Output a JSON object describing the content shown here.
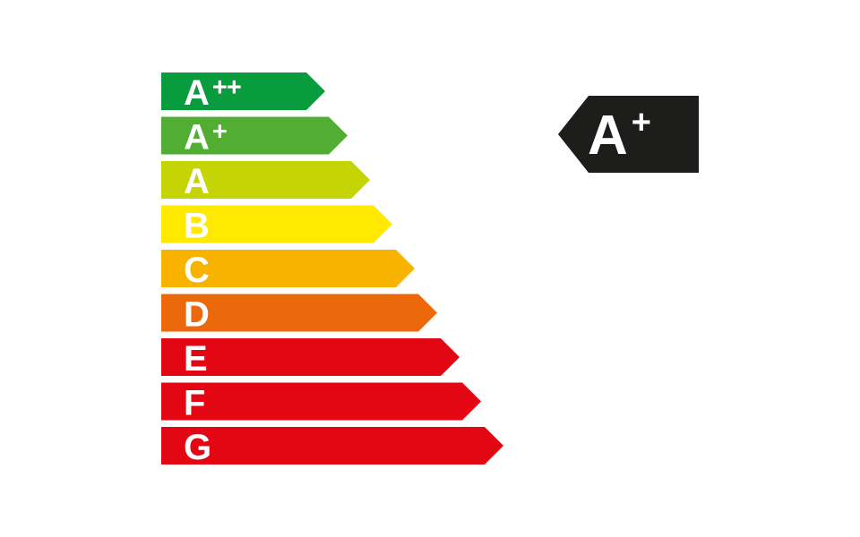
{
  "energy_scale": {
    "type": "energy-efficiency-rating-scale",
    "text_color": "#ffffff",
    "bars": [
      {
        "grade": "A",
        "sup": "++",
        "color": "#089c3e",
        "length": 183
      },
      {
        "grade": "A",
        "sup": "+",
        "color": "#52ae32",
        "length": 208
      },
      {
        "grade": "A",
        "sup": "",
        "color": "#c5d405",
        "length": 233
      },
      {
        "grade": "B",
        "sup": "",
        "color": "#ffe900",
        "length": 258
      },
      {
        "grade": "C",
        "sup": "",
        "color": "#f8b200",
        "length": 283
      },
      {
        "grade": "D",
        "sup": "",
        "color": "#eb690b",
        "length": 308
      },
      {
        "grade": "E",
        "sup": "",
        "color": "#e30613",
        "length": 333
      },
      {
        "grade": "F",
        "sup": "",
        "color": "#e30613",
        "length": 357
      },
      {
        "grade": "G",
        "sup": "",
        "color": "#e30613",
        "length": 382
      }
    ]
  },
  "rating_badge": {
    "grade": "A",
    "sup": "+",
    "background": "#1d1d1b",
    "text_color": "#ffffff"
  }
}
